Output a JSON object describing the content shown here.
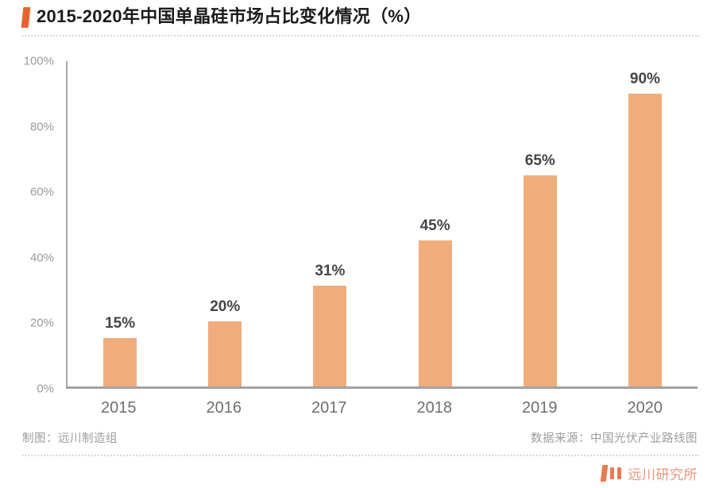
{
  "header": {
    "title": "2015-2020年中国单晶硅市场占比变化情况（%）"
  },
  "chart_data": {
    "type": "bar",
    "categories": [
      "2015",
      "2016",
      "2017",
      "2018",
      "2019",
      "2020"
    ],
    "values": [
      15,
      20,
      31,
      45,
      65,
      90
    ],
    "value_labels": [
      "15%",
      "20%",
      "31%",
      "45%",
      "65%",
      "90%"
    ],
    "title": "2015-2020年中国单晶硅市场占比变化情况（%）",
    "xlabel": "",
    "ylabel": "",
    "ylim": [
      0,
      100
    ],
    "y_ticks": [
      "0%",
      "20%",
      "40%",
      "60%",
      "80%",
      "100%"
    ],
    "grid": false,
    "legend": null,
    "bar_color": "#F0AC7D"
  },
  "footer": {
    "credit_left": "制图：远川制造组",
    "credit_right": "数据来源：中国光伏产业路线图"
  },
  "brand": {
    "logo_icon": "three-bars-icon",
    "name": "远川研究所"
  },
  "colors": {
    "accent_orange": "#E8632C",
    "bar_fill": "#F0AC7D",
    "axis_gray": "#A6A6A6",
    "logo_bars": "#EB7A52",
    "logo_text": "#E9957A"
  }
}
